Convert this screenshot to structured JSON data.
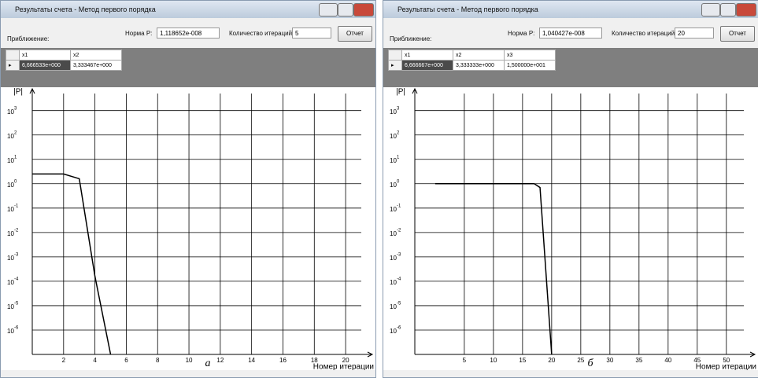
{
  "windows": [
    {
      "title": "Результаты счета - Метод первого порядка",
      "approx_label": "Приближение:",
      "norm_label": "Норма P:",
      "norm_value": "1,118652e-008",
      "iter_label": "Количество итераций:",
      "iter_value": "5",
      "button": "Отчет",
      "table": {
        "headers": [
          "x1",
          "x2"
        ],
        "rows": [
          [
            "6,666533e+000",
            "3,333467e+000"
          ]
        ]
      },
      "chart": {
        "type": "line",
        "y_label": "|P|",
        "x_label": "Номер итерации",
        "caption": "а",
        "log_y": true,
        "grid": true,
        "color": "#000000",
        "x": [
          0,
          2,
          3,
          4,
          5
        ],
        "values": [
          2.5,
          2.5,
          1.6,
          0.00016,
          1e-07
        ],
        "xlim": [
          0,
          21
        ],
        "xticks": [
          2,
          4,
          6,
          8,
          10,
          12,
          14,
          16,
          18,
          20
        ],
        "ylim": [
          1e-07,
          5000
        ],
        "yticks": [
          {
            "value": 1000,
            "label": "10",
            "exp": "3"
          },
          {
            "value": 100,
            "label": "10",
            "exp": "2"
          },
          {
            "value": 10,
            "label": "10",
            "exp": "1"
          },
          {
            "value": 1,
            "label": "10",
            "exp": "0"
          },
          {
            "value": 0.1,
            "label": "10",
            "exp": "-1"
          },
          {
            "value": 0.01,
            "label": "10",
            "exp": "-2"
          },
          {
            "value": 0.001,
            "label": "10",
            "exp": "-3"
          },
          {
            "value": 0.0001,
            "label": "10",
            "exp": "-4"
          },
          {
            "value": 1e-05,
            "label": "10",
            "exp": "-5"
          },
          {
            "value": 1e-06,
            "label": "10",
            "exp": "-6"
          }
        ]
      }
    },
    {
      "title": "Результаты счета - Метод первого порядка",
      "approx_label": "Приближение:",
      "norm_label": "Норма P:",
      "norm_value": "1,040427e-008",
      "iter_label": "Количество итераций:",
      "iter_value": "20",
      "button": "Отчет",
      "table": {
        "headers": [
          "x1",
          "x2",
          "x3"
        ],
        "rows": [
          [
            "6,666667e+000",
            "3,333333e+000",
            "1,500000e+001"
          ]
        ]
      },
      "chart": {
        "type": "line",
        "y_label": "|P|",
        "x_label": "Номер итерации",
        "caption": "б",
        "log_y": true,
        "grid": true,
        "color": "#000000",
        "x": [
          0,
          17,
          18,
          20
        ],
        "values": [
          1,
          1,
          0.7,
          1e-07
        ],
        "xlim": [
          -3.5,
          53
        ],
        "xticks": [
          5,
          10,
          15,
          20,
          25,
          30,
          35,
          40,
          45,
          50
        ],
        "ylim": [
          1e-07,
          5000
        ],
        "yticks": [
          {
            "value": 1000,
            "label": "10",
            "exp": "3"
          },
          {
            "value": 100,
            "label": "10",
            "exp": "2"
          },
          {
            "value": 10,
            "label": "10",
            "exp": "1"
          },
          {
            "value": 1,
            "label": "10",
            "exp": "0"
          },
          {
            "value": 0.1,
            "label": "10",
            "exp": "-1"
          },
          {
            "value": 0.01,
            "label": "10",
            "exp": "-2"
          },
          {
            "value": 0.001,
            "label": "10",
            "exp": "-3"
          },
          {
            "value": 0.0001,
            "label": "10",
            "exp": "-4"
          },
          {
            "value": 1e-05,
            "label": "10",
            "exp": "-5"
          },
          {
            "value": 1e-06,
            "label": "10",
            "exp": "-6"
          }
        ]
      }
    }
  ]
}
